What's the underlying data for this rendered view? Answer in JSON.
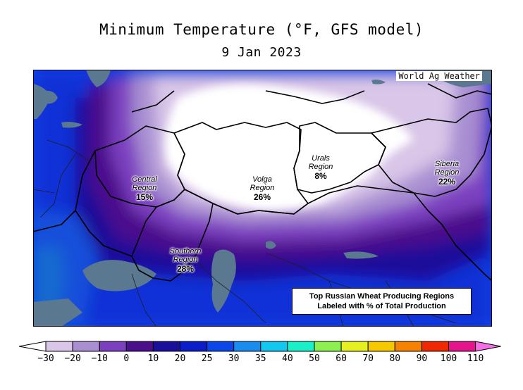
{
  "title": "Minimum Temperature (°F, GFS model)",
  "date": "9 Jan 2023",
  "credit": "World Ag Weather",
  "note": {
    "line1": "Top Russian Wheat Producing Regions",
    "line2": "Labeled with % of Total Production"
  },
  "regions": [
    {
      "name_line1": "Central",
      "name_line2": "Region",
      "percent": "15%"
    },
    {
      "name_line1": "Volga",
      "name_line2": "Region",
      "percent": "26%"
    },
    {
      "name_line1": "Urals",
      "name_line2": "Region",
      "percent": "8%"
    },
    {
      "name_line1": "Siberia",
      "name_line2": "Region",
      "percent": "22%"
    },
    {
      "name_line1": "Southern",
      "name_line2": "Region",
      "percent": "28%"
    }
  ],
  "legend": {
    "ticks": [
      "−30",
      "−20",
      "−10",
      "0",
      "10",
      "20",
      "25",
      "30",
      "35",
      "40",
      "50",
      "60",
      "70",
      "80",
      "90",
      "100",
      "110"
    ],
    "colors": [
      "#ffffff",
      "#d9c6e8",
      "#a98fd2",
      "#7b3fbf",
      "#4b0f8c",
      "#1a0f9a",
      "#0c1ec8",
      "#0a46e8",
      "#1a8cf0",
      "#12c8f0",
      "#19f0c8",
      "#8cf050",
      "#e6f020",
      "#f5c800",
      "#f58200",
      "#f02800",
      "#e6148c",
      "#f56ee6"
    ]
  },
  "colors": {
    "ocean": "#5a7890",
    "border": "#000000",
    "background": "#ffffff"
  }
}
